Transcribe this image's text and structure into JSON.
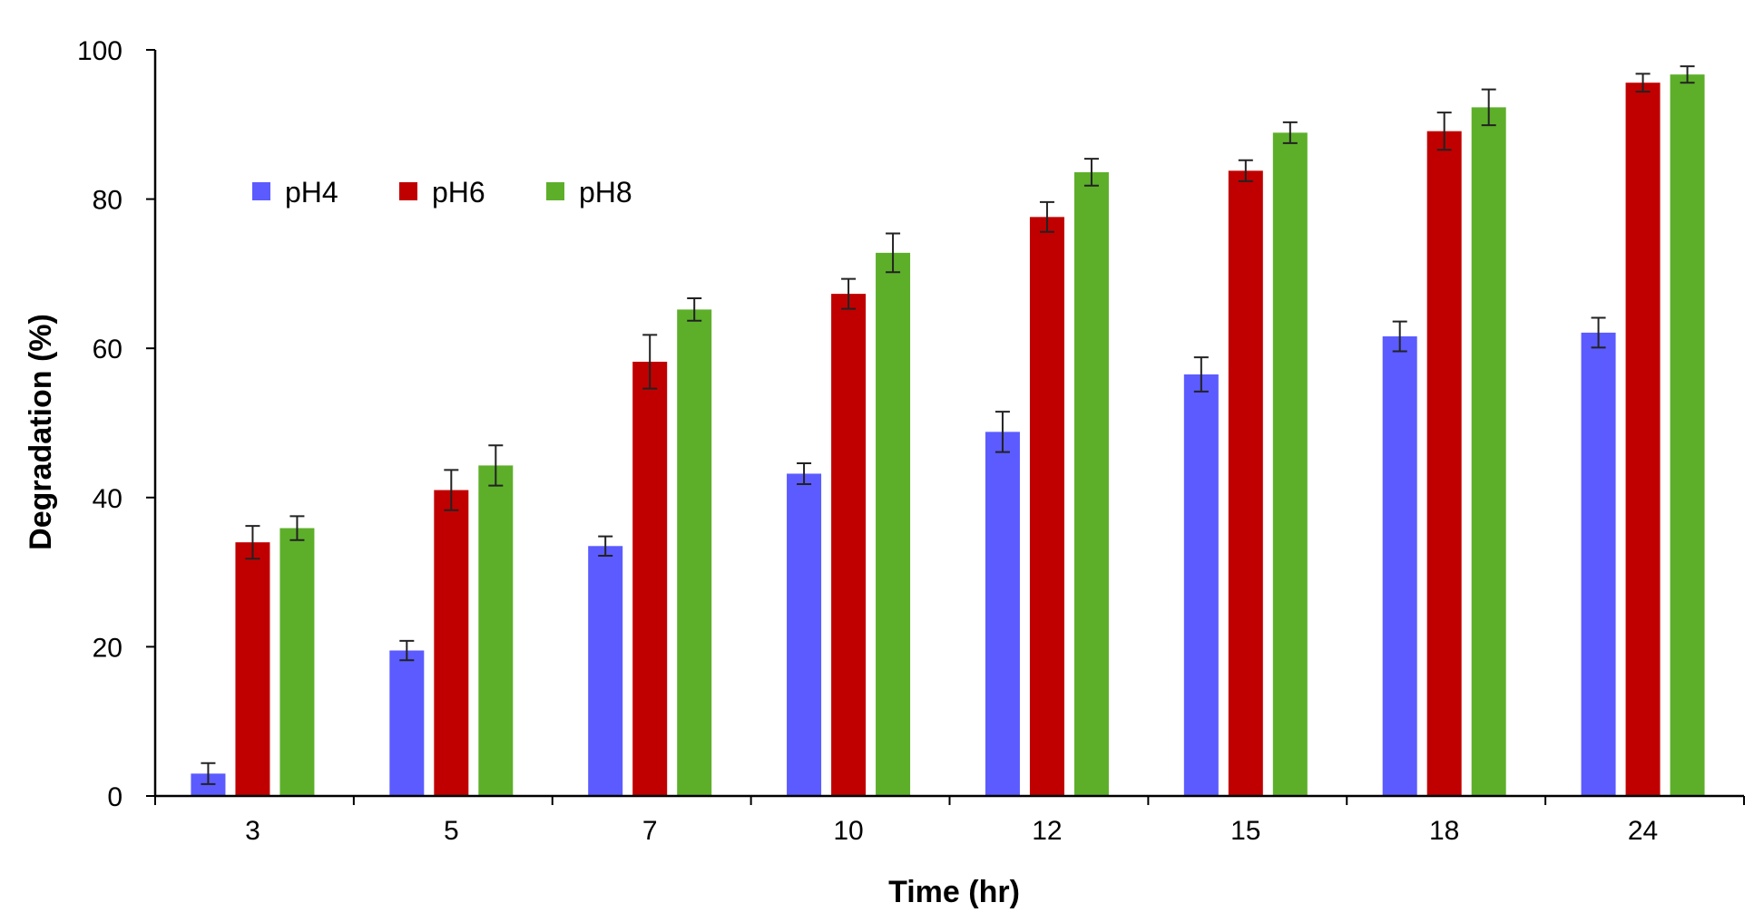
{
  "chart_data": {
    "type": "bar",
    "title": "",
    "xlabel": "Time (hr)",
    "ylabel": "Degradation (%)",
    "categories": [
      "3",
      "5",
      "7",
      "10",
      "12",
      "15",
      "18",
      "24"
    ],
    "ylim": [
      0,
      100
    ],
    "yticks": [
      "0",
      "20",
      "40",
      "60",
      "80",
      "100"
    ],
    "grid": false,
    "legend_position": "top-left",
    "series": [
      {
        "name": "pH4",
        "color": "#5B5BFF",
        "values": [
          3.0,
          19.5,
          33.5,
          43.2,
          48.8,
          56.5,
          61.6,
          62.1
        ],
        "errors": [
          1.4,
          1.3,
          1.3,
          1.4,
          2.7,
          2.3,
          2.0,
          2.0
        ]
      },
      {
        "name": "pH6",
        "color": "#C00000",
        "values": [
          34.0,
          41.0,
          58.2,
          67.3,
          77.6,
          83.8,
          89.1,
          95.6
        ],
        "errors": [
          2.2,
          2.7,
          3.6,
          2.0,
          2.0,
          1.4,
          2.5,
          1.2
        ]
      },
      {
        "name": "pH8",
        "color": "#5DAF2A",
        "values": [
          35.9,
          44.3,
          65.2,
          72.8,
          83.6,
          88.9,
          92.3,
          96.7
        ],
        "errors": [
          1.6,
          2.7,
          1.5,
          2.6,
          1.8,
          1.4,
          2.4,
          1.1
        ]
      }
    ]
  }
}
